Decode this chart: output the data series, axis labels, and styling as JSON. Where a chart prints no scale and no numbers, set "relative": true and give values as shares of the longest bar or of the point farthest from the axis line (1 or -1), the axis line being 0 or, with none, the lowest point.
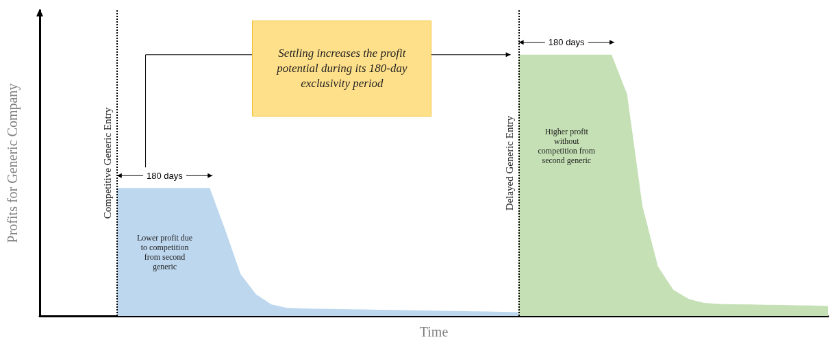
{
  "chart_data": {
    "type": "area",
    "relative": true,
    "xlabel": "Time",
    "ylabel": "Profits for Generic Company",
    "marker": "none",
    "categories": [
      null,
      null,
      null,
      null,
      null,
      null,
      null,
      null,
      null,
      null,
      null,
      null,
      null,
      null,
      null,
      null,
      null,
      null,
      null,
      null,
      null,
      null,
      null,
      null,
      null,
      null,
      null,
      null,
      null,
      null,
      null,
      null,
      null,
      null,
      null,
      null,
      null,
      null,
      null,
      null,
      null,
      null,
      null,
      null,
      null,
      null,
      null,
      null,
      null,
      null,
      null,
      null
    ],
    "series": [
      {
        "color": "#bdd7ee",
        "values": [
          null,
          null,
          null,
          null,
          null,
          0.49,
          0.49,
          0.49,
          0.49,
          0.49,
          0.49,
          0.49,
          0.33,
          0.16,
          0.083,
          0.044,
          0.031,
          0.029,
          0.028,
          0.027,
          0.026,
          0.025,
          0.024,
          0.023,
          0.022,
          0.021,
          0.02,
          0.019,
          0.018,
          0.017,
          0.016,
          0.015,
          null,
          null,
          null,
          null,
          null,
          null,
          null,
          null,
          null,
          null,
          null,
          null,
          null,
          null,
          null,
          null,
          null,
          null,
          null,
          null
        ]
      },
      {
        "color": "#c5e0b4",
        "values": [
          null,
          null,
          null,
          null,
          null,
          null,
          null,
          null,
          null,
          null,
          null,
          null,
          null,
          null,
          null,
          null,
          null,
          null,
          null,
          null,
          null,
          null,
          null,
          null,
          null,
          null,
          null,
          null,
          null,
          null,
          null,
          1,
          1,
          1,
          1,
          1,
          1,
          1,
          0.85,
          0.42,
          0.19,
          0.1,
          0.065,
          0.05,
          0.046,
          0.045,
          0.044,
          0.043,
          0.042,
          0.041,
          0.04,
          0.038
        ]
      }
    ],
    "annotations": [
      "Settling increases the profit potential during its 180-day exclusivity period",
      "180 days",
      "180 days",
      "Lower profit due to competition from second generic",
      "Higher profit without competition from second generic",
      "Competitive Generic Entry",
      "Delayed Generic Entry"
    ]
  }
}
